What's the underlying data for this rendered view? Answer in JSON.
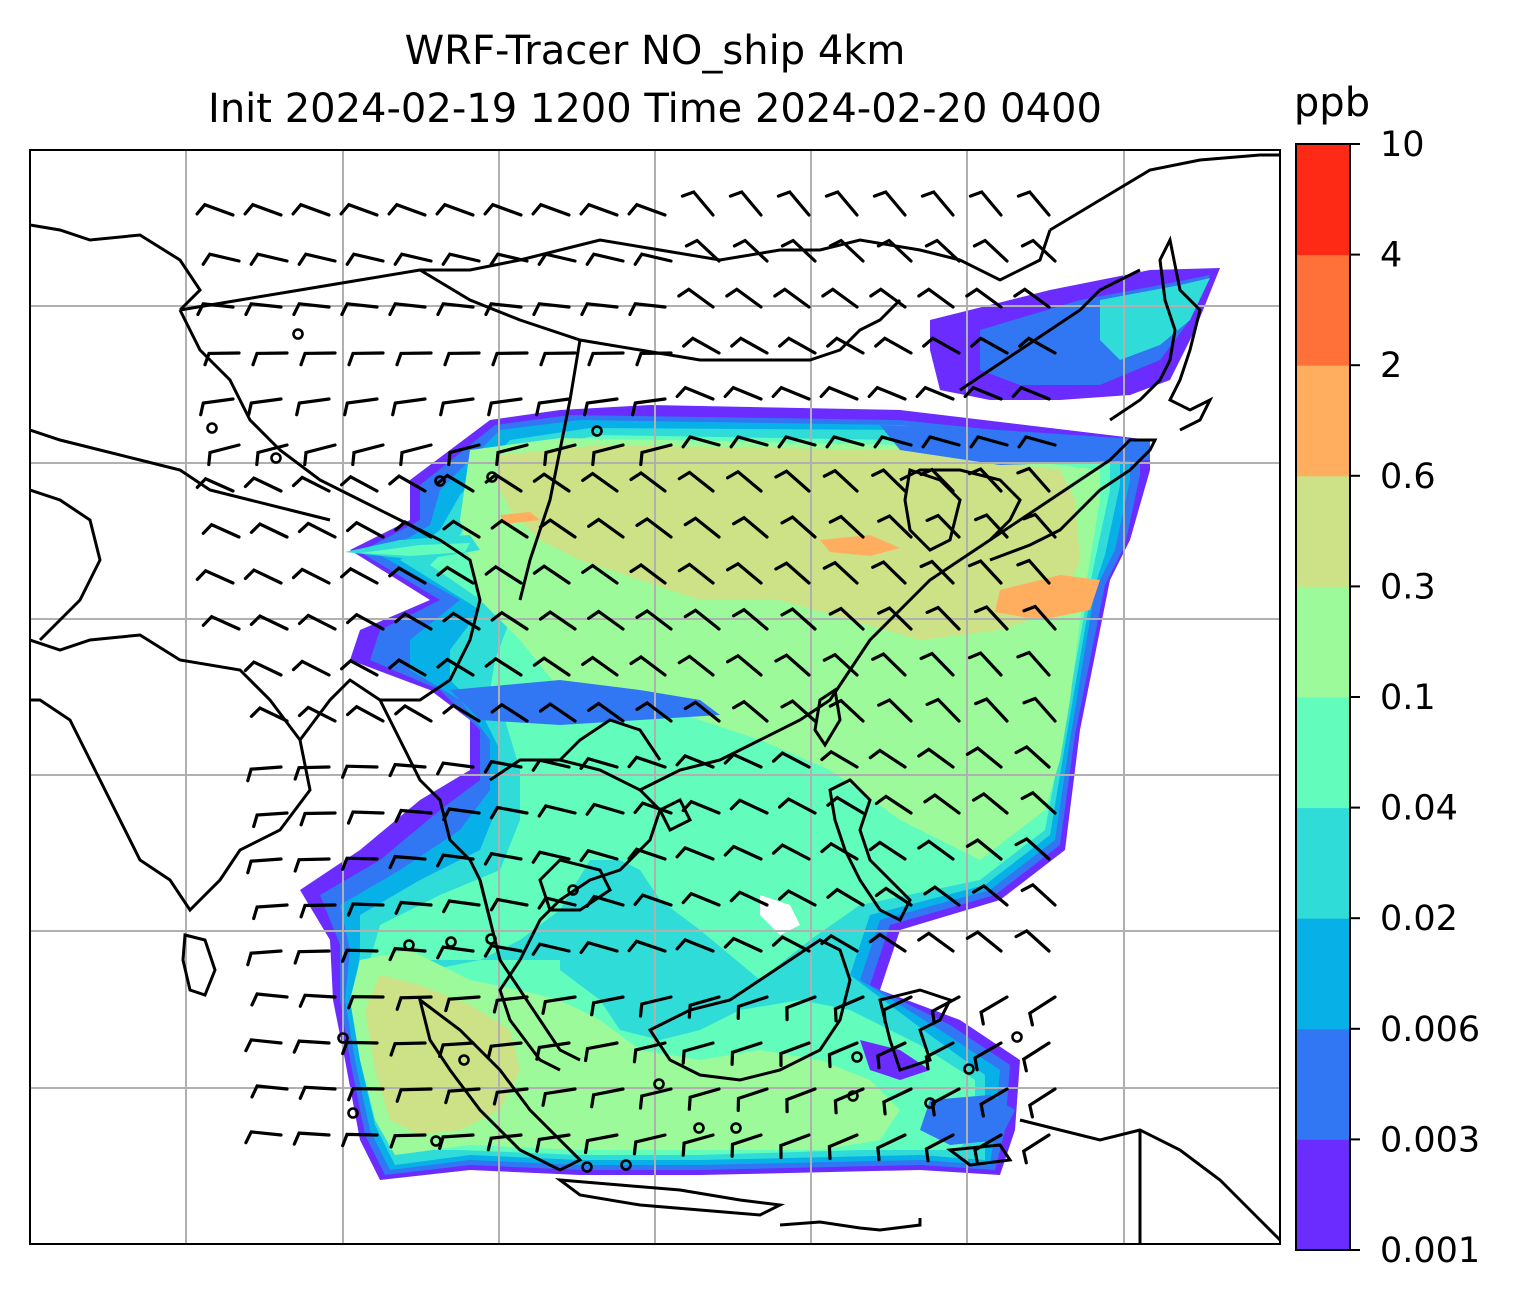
{
  "title_line1": "WRF-Tracer NO_ship 4km",
  "title_line2": "Init 2024-02-19 1200 Time 2024-02-20 0400",
  "colorbar": {
    "unit": "ppb",
    "levels": [
      "0.001",
      "0.003",
      "0.006",
      "0.02",
      "0.04",
      "0.1",
      "0.3",
      "0.6",
      "2",
      "4",
      "10"
    ],
    "colors": [
      "#6a2cff",
      "#3176f2",
      "#08b0e8",
      "#2fdcd8",
      "#62fcbd",
      "#9cfa9b",
      "#cde186",
      "#ffae60",
      "#ff7138",
      "#ff2a16"
    ]
  },
  "map": {
    "gridlines": true,
    "field": "NO_ship tracer concentration",
    "overlay": "wind barbs",
    "background_color": "#ffffff",
    "coastline_color": "#000000",
    "gridline_color": "#b0b0b0"
  }
}
